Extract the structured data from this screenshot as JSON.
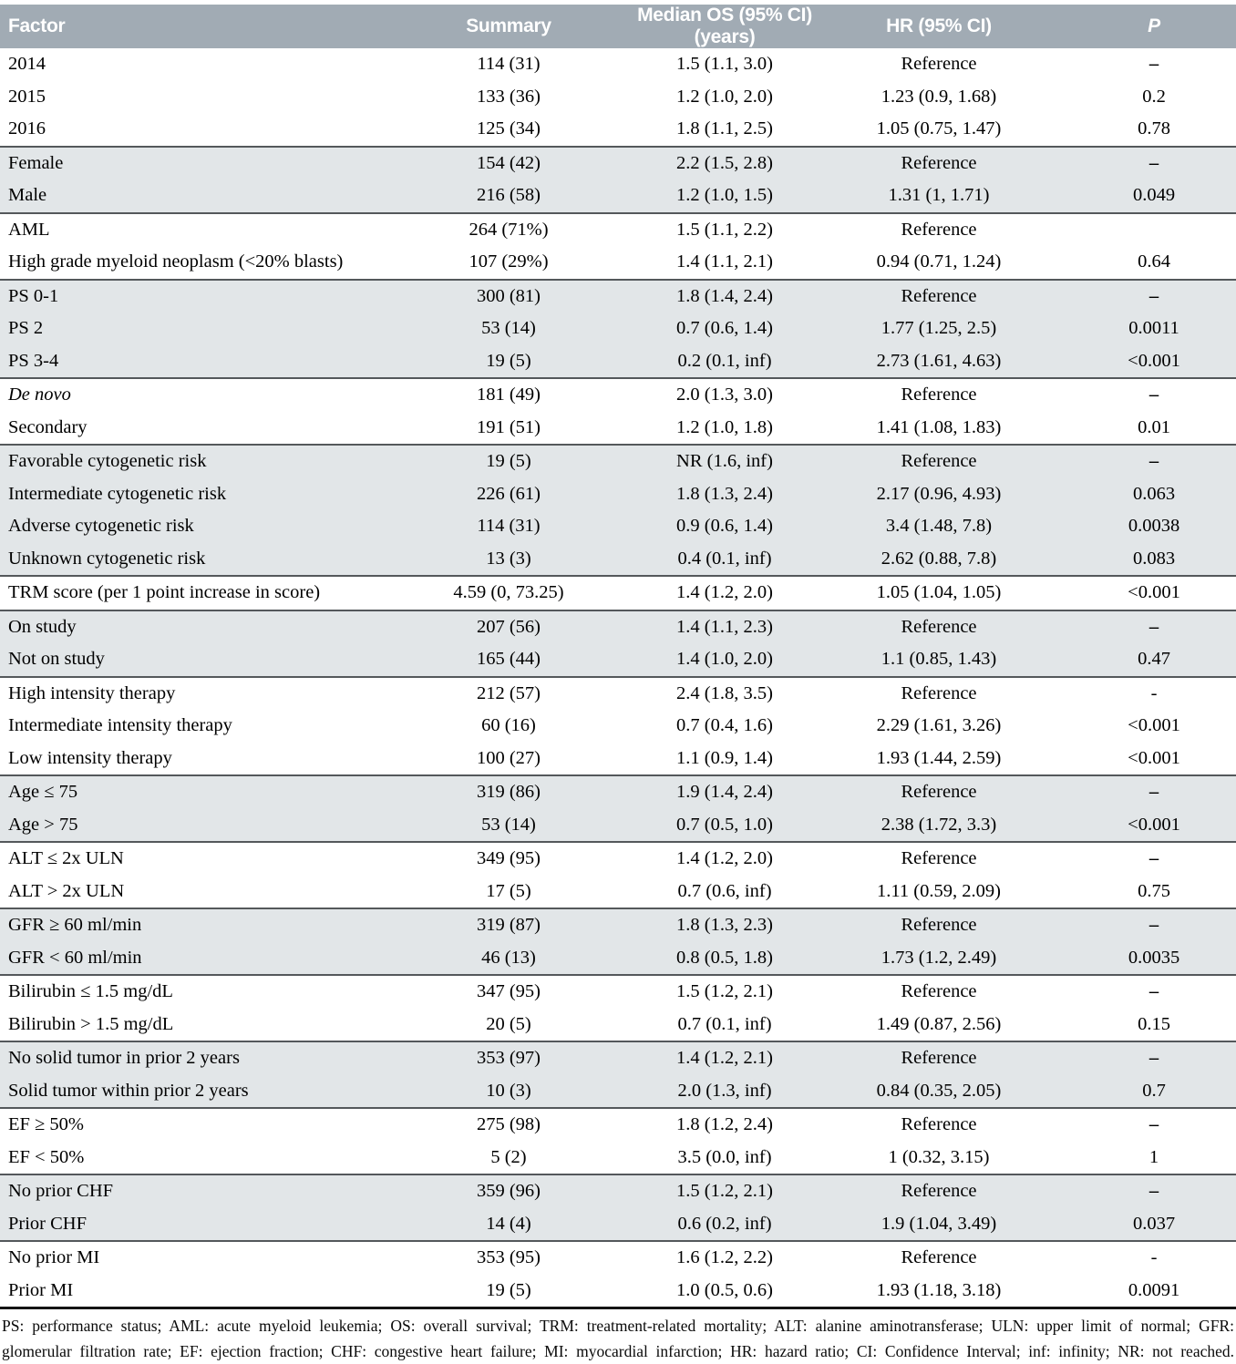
{
  "table": {
    "colors": {
      "header_bg": "#a1abb4",
      "header_text": "#ffffff",
      "shaded_row_bg": "#e2e6e8",
      "group_separator": "#54585b",
      "bottom_border": "#141414"
    },
    "columns": [
      {
        "label": "Factor",
        "align": "left",
        "italic": false
      },
      {
        "label": "Summary",
        "align": "center",
        "italic": false
      },
      {
        "label": "Median OS (95% CI) (years)",
        "align": "center",
        "italic": false
      },
      {
        "label": "HR (95% CI)",
        "align": "center",
        "italic": false
      },
      {
        "label": "P",
        "align": "center",
        "italic": true
      }
    ],
    "groups": [
      {
        "shaded": false,
        "rows": [
          {
            "factor": "2014",
            "summary": "114 (31)",
            "os": "1.5 (1.1, 3.0)",
            "hr": "Reference",
            "p": "–"
          },
          {
            "factor": "2015",
            "summary": "133 (36)",
            "os": "1.2 (1.0, 2.0)",
            "hr": "1.23 (0.9, 1.68)",
            "p": "0.2"
          },
          {
            "factor": "2016",
            "summary": "125 (34)",
            "os": "1.8 (1.1, 2.5)",
            "hr": "1.05 (0.75, 1.47)",
            "p": "0.78"
          }
        ]
      },
      {
        "shaded": true,
        "rows": [
          {
            "factor": "Female",
            "summary": "154 (42)",
            "os": "2.2 (1.5, 2.8)",
            "hr": "Reference",
            "p": "–"
          },
          {
            "factor": "Male",
            "summary": "216 (58)",
            "os": "1.2 (1.0, 1.5)",
            "hr": "1.31 (1, 1.71)",
            "p": "0.049"
          }
        ]
      },
      {
        "shaded": false,
        "rows": [
          {
            "factor": "AML",
            "summary": "264 (71%)",
            "os": "1.5 (1.1, 2.2)",
            "hr": "Reference",
            "p": ""
          },
          {
            "factor": "High grade myeloid neoplasm (<20% blasts)",
            "summary": "107 (29%)",
            "os": "1.4 (1.1, 2.1)",
            "hr": "0.94 (0.71, 1.24)",
            "p": "0.64"
          }
        ]
      },
      {
        "shaded": true,
        "rows": [
          {
            "factor": "PS 0-1",
            "summary": "300 (81)",
            "os": "1.8 (1.4, 2.4)",
            "hr": "Reference",
            "p": "–"
          },
          {
            "factor": "PS 2",
            "summary": "53 (14)",
            "os": "0.7 (0.6, 1.4)",
            "hr": "1.77 (1.25, 2.5)",
            "p": "0.0011"
          },
          {
            "factor": "PS 3-4",
            "summary": "19 (5)",
            "os": "0.2 (0.1, inf)",
            "hr": "2.73 (1.61, 4.63)",
            "p": "<0.001"
          }
        ]
      },
      {
        "shaded": false,
        "rows": [
          {
            "factor": "De novo",
            "factor_italic": true,
            "summary": "181 (49)",
            "os": "2.0 (1.3, 3.0)",
            "hr": "Reference",
            "p": "–"
          },
          {
            "factor": "Secondary",
            "summary": "191 (51)",
            "os": "1.2 (1.0, 1.8)",
            "hr": "1.41 (1.08, 1.83)",
            "p": "0.01"
          }
        ]
      },
      {
        "shaded": true,
        "rows": [
          {
            "factor": "Favorable cytogenetic risk",
            "summary": "19 (5)",
            "os": "NR (1.6, inf)",
            "hr": "Reference",
            "p": "–"
          },
          {
            "factor": "Intermediate cytogenetic risk",
            "summary": "226 (61)",
            "os": "1.8 (1.3, 2.4)",
            "hr": "2.17 (0.96, 4.93)",
            "p": "0.063"
          },
          {
            "factor": "Adverse cytogenetic risk",
            "summary": "114 (31)",
            "os": "0.9 (0.6, 1.4)",
            "hr": "3.4 (1.48, 7.8)",
            "p": "0.0038"
          },
          {
            "factor": "Unknown cytogenetic risk",
            "summary": "13 (3)",
            "os": "0.4 (0.1, inf)",
            "hr": "2.62 (0.88, 7.8)",
            "p": "0.083"
          }
        ]
      },
      {
        "shaded": false,
        "rows": [
          {
            "factor": "TRM score (per 1 point increase in score)",
            "summary": "4.59 (0, 73.25)",
            "os": "1.4 (1.2, 2.0)",
            "hr": "1.05 (1.04, 1.05)",
            "p": "<0.001"
          }
        ]
      },
      {
        "shaded": true,
        "rows": [
          {
            "factor": "On study",
            "summary": "207 (56)",
            "os": "1.4 (1.1, 2.3)",
            "hr": "Reference",
            "p": "–"
          },
          {
            "factor": "Not on study",
            "summary": "165 (44)",
            "os": "1.4 (1.0, 2.0)",
            "hr": "1.1 (0.85, 1.43)",
            "p": "0.47"
          }
        ]
      },
      {
        "shaded": false,
        "rows": [
          {
            "factor": "High intensity therapy",
            "summary": "212 (57)",
            "os": "2.4 (1.8, 3.5)",
            "hr": "Reference",
            "p": "-"
          },
          {
            "factor": "Intermediate intensity therapy",
            "summary": "60 (16)",
            "os": "0.7 (0.4, 1.6)",
            "hr": "2.29 (1.61, 3.26)",
            "p": "<0.001"
          },
          {
            "factor": "Low intensity therapy",
            "summary": "100 (27)",
            "os": "1.1 (0.9, 1.4)",
            "hr": "1.93 (1.44, 2.59)",
            "p": "<0.001"
          }
        ]
      },
      {
        "shaded": true,
        "rows": [
          {
            "factor": "Age ≤ 75",
            "summary": "319 (86)",
            "os": "1.9 (1.4, 2.4)",
            "hr": "Reference",
            "p": "–"
          },
          {
            "factor": "Age > 75",
            "summary": "53 (14)",
            "os": "0.7 (0.5, 1.0)",
            "hr": "2.38 (1.72, 3.3)",
            "p": "<0.001"
          }
        ]
      },
      {
        "shaded": false,
        "rows": [
          {
            "factor": "ALT ≤ 2x ULN",
            "summary": "349 (95)",
            "os": "1.4 (1.2, 2.0)",
            "hr": "Reference",
            "p": "–"
          },
          {
            "factor": "ALT > 2x ULN",
            "summary": "17 (5)",
            "os": "0.7 (0.6, inf)",
            "hr": "1.11 (0.59, 2.09)",
            "p": "0.75"
          }
        ]
      },
      {
        "shaded": true,
        "rows": [
          {
            "factor": "GFR ≥ 60 ml/min",
            "summary": "319 (87)",
            "os": "1.8 (1.3, 2.3)",
            "hr": "Reference",
            "p": "–"
          },
          {
            "factor": "GFR < 60 ml/min",
            "summary": "46 (13)",
            "os": "0.8 (0.5, 1.8)",
            "hr": "1.73 (1.2, 2.49)",
            "p": "0.0035"
          }
        ]
      },
      {
        "shaded": false,
        "rows": [
          {
            "factor": "Bilirubin ≤ 1.5 mg/dL",
            "summary": "347 (95)",
            "os": "1.5 (1.2, 2.1)",
            "hr": "Reference",
            "p": "–"
          },
          {
            "factor": "Bilirubin > 1.5 mg/dL",
            "summary": "20 (5)",
            "os": "0.7 (0.1, inf)",
            "hr": "1.49 (0.87, 2.56)",
            "p": "0.15"
          }
        ]
      },
      {
        "shaded": true,
        "rows": [
          {
            "factor": "No solid tumor in prior 2 years",
            "summary": "353 (97)",
            "os": "1.4 (1.2, 2.1)",
            "hr": "Reference",
            "p": "–"
          },
          {
            "factor": "Solid tumor within prior 2 years",
            "summary": "10 (3)",
            "os": "2.0 (1.3, inf)",
            "hr": "0.84 (0.35, 2.05)",
            "p": "0.7"
          }
        ]
      },
      {
        "shaded": false,
        "rows": [
          {
            "factor": "EF ≥ 50%",
            "summary": "275 (98)",
            "os": "1.8 (1.2, 2.4)",
            "hr": "Reference",
            "p": "–"
          },
          {
            "factor": "EF < 50%",
            "summary": "5 (2)",
            "os": "3.5 (0.0, inf)",
            "hr": "1 (0.32, 3.15)",
            "p": "1"
          }
        ]
      },
      {
        "shaded": true,
        "rows": [
          {
            "factor": "No prior CHF",
            "summary": "359 (96)",
            "os": "1.5 (1.2, 2.1)",
            "hr": "Reference",
            "p": "–"
          },
          {
            "factor": "Prior CHF",
            "summary": "14 (4)",
            "os": "0.6 (0.2, inf)",
            "hr": "1.9 (1.04, 3.49)",
            "p": "0.037"
          }
        ]
      },
      {
        "shaded": false,
        "rows": [
          {
            "factor": "No prior MI",
            "summary": "353 (95)",
            "os": "1.6 (1.2, 2.2)",
            "hr": "Reference",
            "p": "-"
          },
          {
            "factor": "Prior MI",
            "summary": "19 (5)",
            "os": "1.0 (0.5, 0.6)",
            "hr": "1.93 (1.18, 3.18)",
            "p": "0.0091"
          }
        ]
      }
    ]
  },
  "footnote": {
    "lines": [
      "PS: performance status; AML: acute myeloid leukemia; OS: overall survival; TRM: treatment-related mortality; ALT: alanine aminotransferase; ULN: upper limit of normal; GFR:",
      "glomerular filtration rate; EF: ejection fraction; CHF: congestive heart failure; MI: myocardial infarction; HR: hazard ratio; CI: Confidence Interval; inf: infinity; NR: not reached."
    ]
  }
}
